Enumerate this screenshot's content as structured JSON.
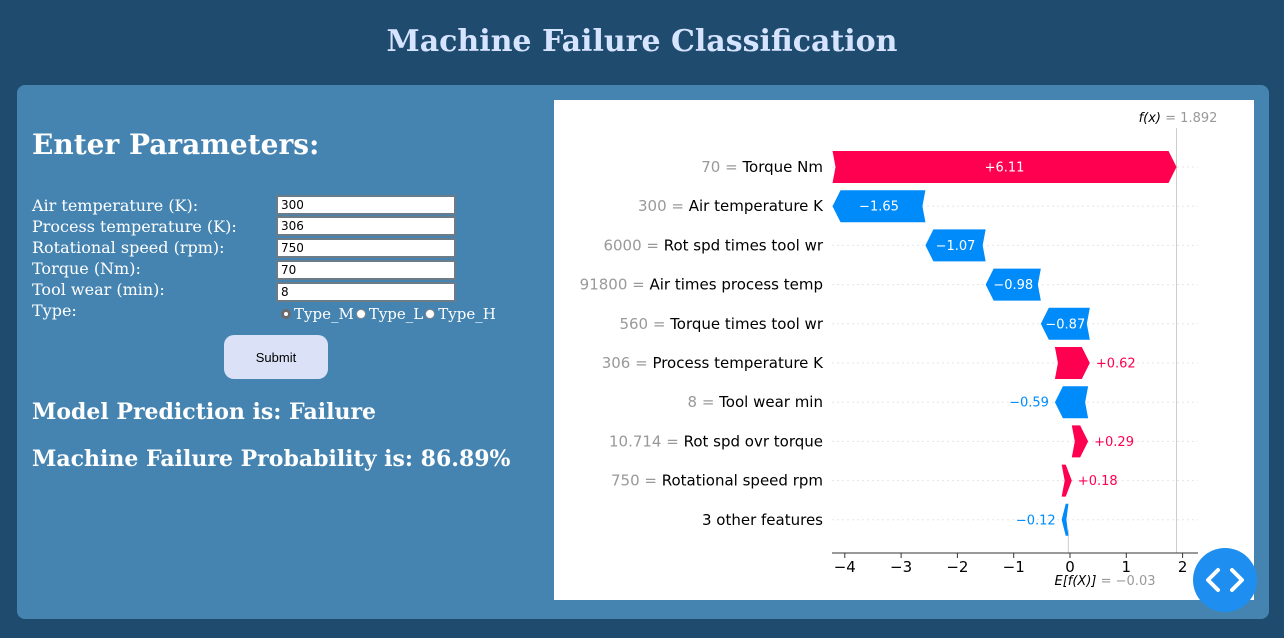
{
  "page": {
    "title": "Machine Failure Classification"
  },
  "form": {
    "heading": "Enter Parameters:",
    "fields": [
      {
        "label": "Air temperature (K):",
        "value": "300"
      },
      {
        "label": "Process temperature (K):",
        "value": "306"
      },
      {
        "label": "Rotational speed (rpm):",
        "value": "750"
      },
      {
        "label": "Torque (Nm):",
        "value": "70"
      },
      {
        "label": "Tool wear (min):",
        "value": "8"
      }
    ],
    "type_label": "Type:",
    "type_options": [
      {
        "label": "Type_M",
        "checked": true
      },
      {
        "label": "Type_L",
        "checked": false
      },
      {
        "label": "Type_H",
        "checked": false
      }
    ],
    "submit_label": "Submit"
  },
  "result": {
    "prediction": "Model Prediction is: Failure",
    "probability": "Machine Failure Probability is: 86.89%"
  },
  "chart_data": {
    "type": "bar",
    "subtype": "waterfall",
    "base_value": -0.03,
    "final_value": 1.892,
    "fx_label": "f(x) = 1.892",
    "efx_label": "E[f(X)] = −0.03",
    "xlim": [
      -4.3,
      2.3
    ],
    "xticks": [
      -4,
      -3,
      -2,
      -1,
      0,
      1,
      2
    ],
    "xtick_labels": [
      "−4",
      "−3",
      "−2",
      "−1",
      "0",
      "1",
      "2"
    ],
    "features": [
      {
        "value": "70",
        "name": "Torque Nm",
        "contribution": 6.11,
        "label": "+6.11"
      },
      {
        "value": "300",
        "name": "Air temperature K",
        "contribution": -1.65,
        "label": "−1.65"
      },
      {
        "value": "6000",
        "name": "Rot spd times tool wr",
        "contribution": -1.07,
        "label": "−1.07"
      },
      {
        "value": "91800",
        "name": "Air times process temp",
        "contribution": -0.98,
        "label": "−0.98"
      },
      {
        "value": "560",
        "name": "Torque times tool wr",
        "contribution": -0.87,
        "label": "−0.87"
      },
      {
        "value": "306",
        "name": "Process temperature K",
        "contribution": 0.62,
        "label": "+0.62"
      },
      {
        "value": "8",
        "name": "Tool wear min",
        "contribution": -0.59,
        "label": "−0.59"
      },
      {
        "value": "10.714",
        "name": "Rot spd ovr torque",
        "contribution": 0.29,
        "label": "+0.29"
      },
      {
        "value": "750",
        "name": "Rotational speed rpm",
        "contribution": 0.18,
        "label": "+0.18"
      },
      {
        "value": "",
        "name": "3 other features",
        "contribution": -0.12,
        "label": "−0.12"
      }
    ],
    "colors": {
      "positive": "#ff0051",
      "negative": "#008bfb",
      "value_gray": "#999999",
      "text": "#000000"
    }
  },
  "fab": {
    "icon": "code-icon",
    "color": "#1e8ff0"
  }
}
